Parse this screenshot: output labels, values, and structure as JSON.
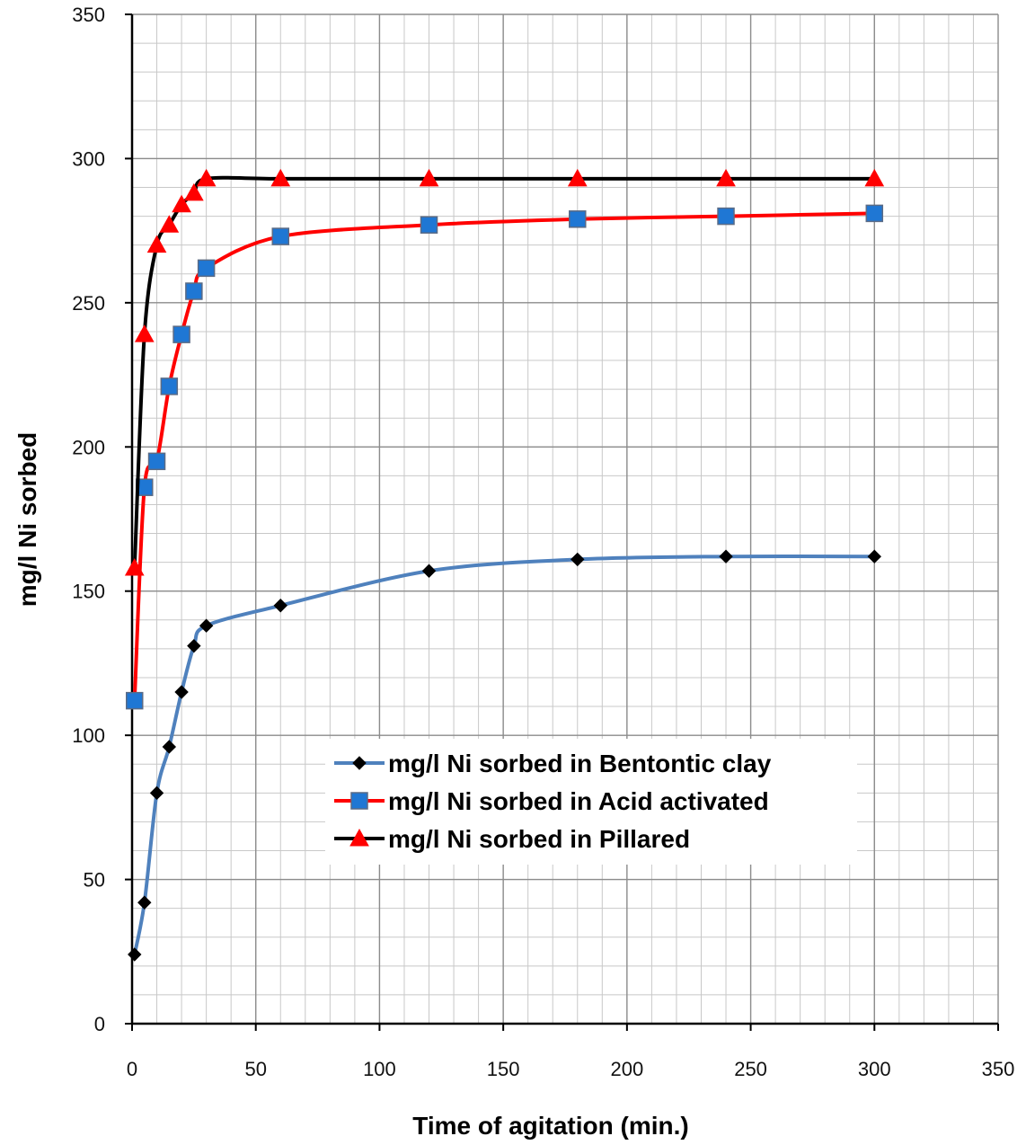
{
  "chart_data": {
    "type": "line",
    "title": "",
    "xlabel": "Time of agitation (min.)",
    "ylabel": "mg/l Ni sorbed",
    "xlim": [
      0,
      350
    ],
    "ylim": [
      0,
      350
    ],
    "x_ticks": [
      0,
      50,
      100,
      150,
      200,
      250,
      300,
      350
    ],
    "y_ticks": [
      0,
      50,
      100,
      150,
      200,
      250,
      300,
      350
    ],
    "grid": true,
    "minor_grid": true,
    "legend_position": "center-right",
    "series": [
      {
        "name": "mg/l  Ni sorbed in Bentontic clay",
        "color": "#4F81BD",
        "marker": "diamond",
        "marker_color": "#000000",
        "x": [
          1,
          5,
          10,
          15,
          20,
          25,
          30,
          60,
          120,
          180,
          240,
          300
        ],
        "y": [
          24,
          42,
          80,
          96,
          115,
          131,
          138,
          145,
          157,
          161,
          162,
          162
        ]
      },
      {
        "name": "mg/l Ni sorbed in Acid activated",
        "color": "#FF0000",
        "marker": "square",
        "marker_color": "#1F77D4",
        "x": [
          1,
          5,
          10,
          15,
          20,
          25,
          30,
          60,
          120,
          180,
          240,
          300
        ],
        "y": [
          112,
          186,
          195,
          221,
          239,
          254,
          262,
          273,
          277,
          279,
          280,
          281
        ]
      },
      {
        "name": "mg/l Ni sorbed in Pillared",
        "color": "#000000",
        "marker": "triangle",
        "marker_color": "#FF0000",
        "x": [
          1,
          5,
          10,
          15,
          20,
          25,
          30,
          60,
          120,
          180,
          240,
          300
        ],
        "y": [
          158,
          239,
          270,
          277,
          284,
          288,
          293,
          293,
          293,
          293,
          293,
          293
        ]
      }
    ]
  }
}
